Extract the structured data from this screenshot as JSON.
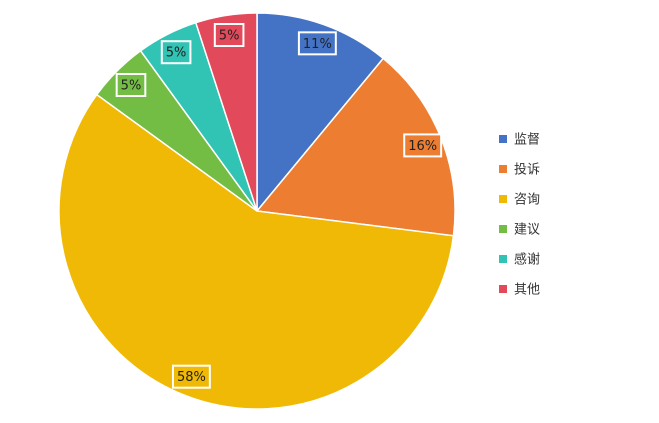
{
  "chart_data": {
    "type": "pie",
    "categories": [
      "监督",
      "投诉",
      "咨询",
      "建议",
      "感谢",
      "其他"
    ],
    "values": [
      11,
      16,
      58,
      5,
      5,
      5
    ],
    "value_labels": [
      "11%",
      "16%",
      "58%",
      "5%",
      "5%",
      "5%"
    ],
    "colors": [
      "#4472c4",
      "#ed7d31",
      "#f0b905",
      "#74bd44",
      "#31c3b4",
      "#e2495b"
    ],
    "legend": "right"
  }
}
